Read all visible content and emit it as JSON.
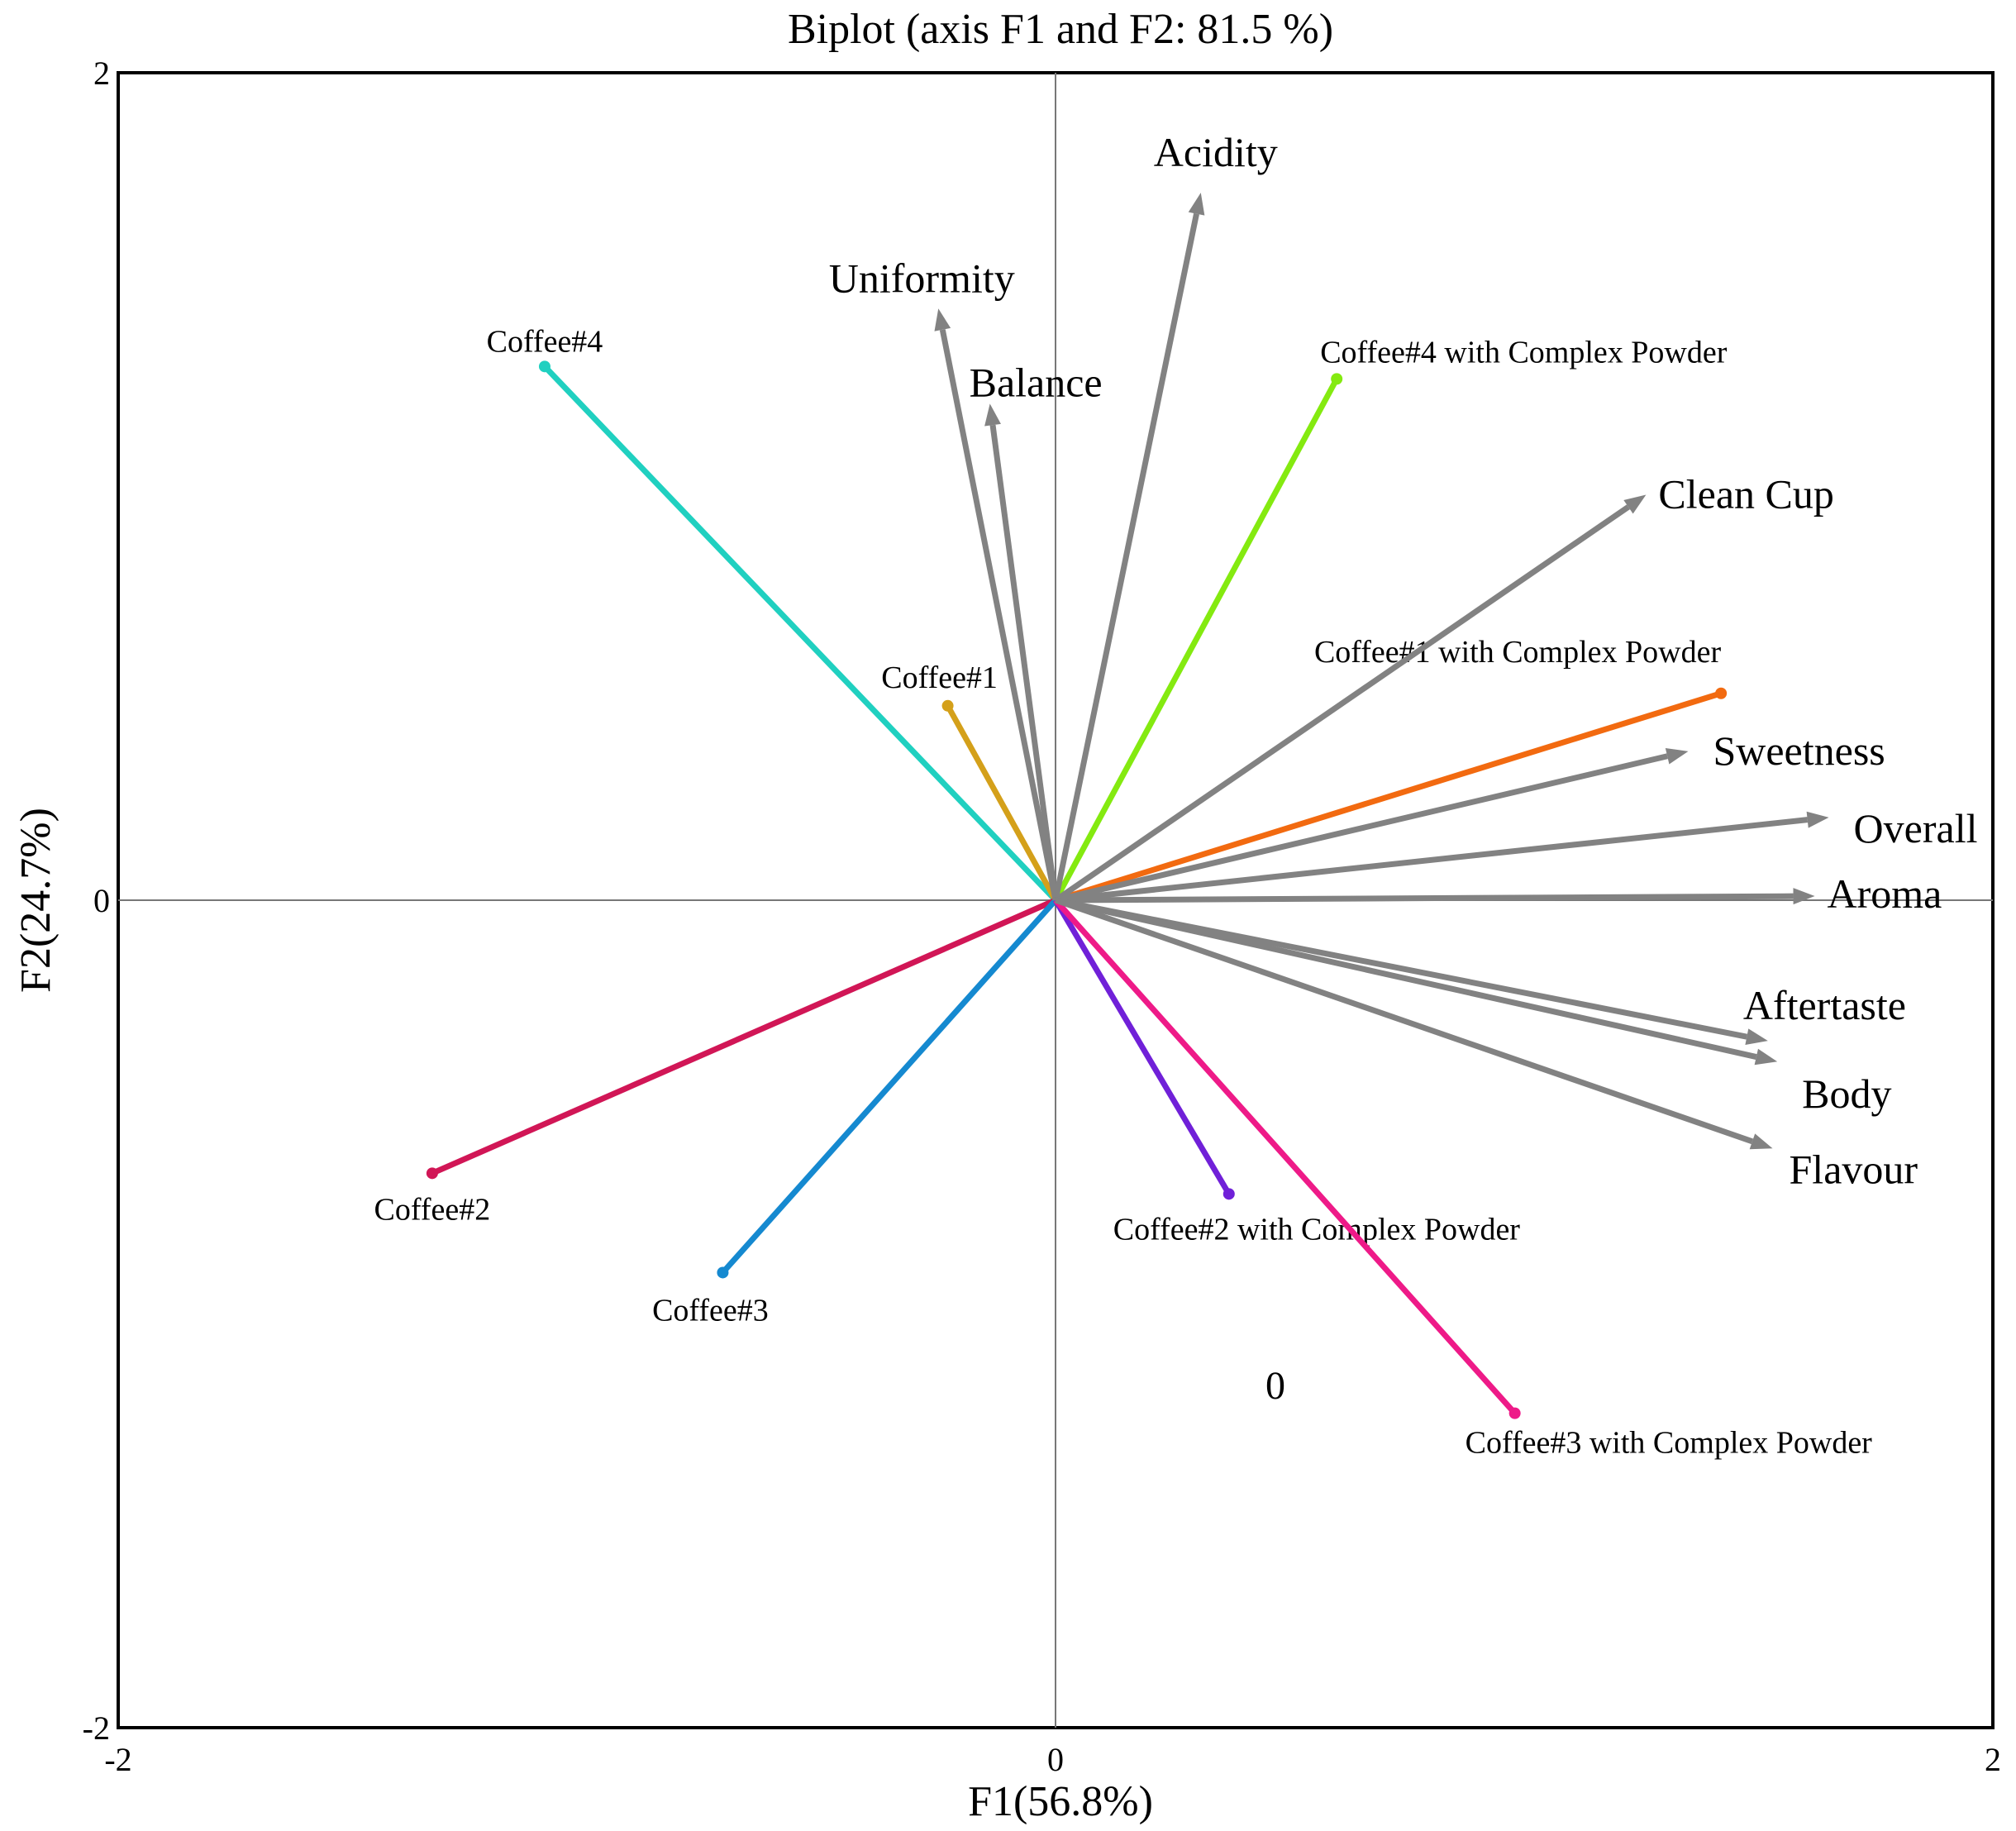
{
  "chart_data": {
    "type": "biplot",
    "title": "Biplot (axis F1 and F2: 81.5 %)",
    "xlabel": "F1(56.8%)",
    "ylabel": "F2(24.7%)",
    "xlim": [
      -2,
      2
    ],
    "ylim": [
      -2,
      2
    ],
    "xticks": [
      "-2",
      "0",
      "2"
    ],
    "yticks": [
      "-2",
      "0",
      "2"
    ],
    "grid": false,
    "annotation": "0",
    "variables": [
      {
        "name": "Acidity",
        "x": 0.31,
        "y": 1.71
      },
      {
        "name": "Uniformity",
        "x": -0.25,
        "y": 1.43
      },
      {
        "name": "Balance",
        "x": -0.14,
        "y": 1.2
      },
      {
        "name": "Clean Cup",
        "x": 1.26,
        "y": 0.98
      },
      {
        "name": "Sweetness",
        "x": 1.35,
        "y": 0.36
      },
      {
        "name": "Overall",
        "x": 1.65,
        "y": 0.2
      },
      {
        "name": "Aroma",
        "x": 1.62,
        "y": 0.01
      },
      {
        "name": "Aftertaste",
        "x": 1.52,
        "y": -0.34
      },
      {
        "name": "Body",
        "x": 1.54,
        "y": -0.39
      },
      {
        "name": "Flavour",
        "x": 1.53,
        "y": -0.6
      }
    ],
    "observations": [
      {
        "name": "Coffee#4",
        "x": -1.09,
        "y": 1.29,
        "color": "#20d0c0"
      },
      {
        "name": "Coffee#4 with Complex Powder",
        "x": 0.6,
        "y": 1.26,
        "color": "#84ea10"
      },
      {
        "name": "Coffee#1",
        "x": -0.23,
        "y": 0.47,
        "color": "#d4a01a"
      },
      {
        "name": "Coffee#1 with Complex Powder",
        "x": 1.42,
        "y": 0.5,
        "color": "#f26a10"
      },
      {
        "name": "Coffee#2",
        "x": -1.33,
        "y": -0.66,
        "color": "#d11656"
      },
      {
        "name": "Coffee#3",
        "x": -0.71,
        "y": -0.9,
        "color": "#1589d0"
      },
      {
        "name": "Coffee#2 with Complex Powder",
        "x": 0.37,
        "y": -0.71,
        "color": "#7020d8"
      },
      {
        "name": "Coffee#3 with Complex Powder",
        "x": 0.98,
        "y": -1.24,
        "color": "#ee1a88"
      }
    ],
    "vector_color": "#828282"
  }
}
